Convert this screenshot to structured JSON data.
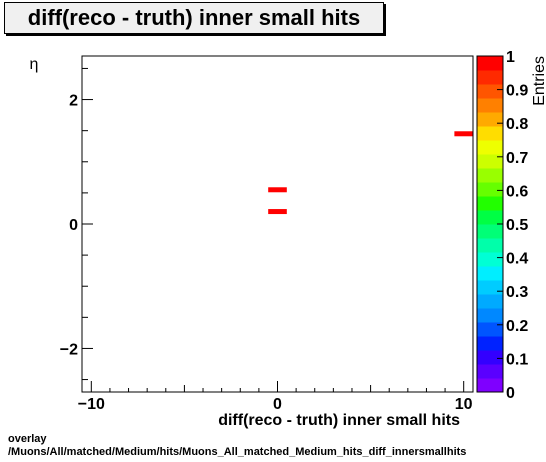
{
  "title": "diff(reco - truth) inner small hits",
  "footer": {
    "line1": "overlay",
    "line2": "/Muons/All/matched/Medium/hits/Muons_All_matched_Medium_hits_diff_innersmallhits"
  },
  "chart_data": {
    "type": "heatmap",
    "title": "diff(reco - truth) inner small hits",
    "xlabel": "diff(reco - truth) inner small hits",
    "ylabel": "η",
    "zlabel": "Entries",
    "xlim": [
      -10.5,
      10.5
    ],
    "ylim": [
      -2.7,
      2.7
    ],
    "zlim": [
      0,
      1
    ],
    "x_ticks": [
      -10,
      0,
      10
    ],
    "x_tick_labels": [
      "−10",
      "0",
      "10"
    ],
    "y_ticks": [
      -2,
      0,
      2
    ],
    "y_tick_labels": [
      "−2",
      "0",
      "2"
    ],
    "z_ticks": [
      0,
      0.1,
      0.2,
      0.3,
      0.4,
      0.5,
      0.6,
      0.7,
      0.8,
      0.9,
      1
    ],
    "z_tick_labels": [
      "0",
      "0.1",
      "0.2",
      "0.3",
      "0.4",
      "0.5",
      "0.6",
      "0.7",
      "0.8",
      "0.9",
      "1"
    ],
    "bins": [
      {
        "x": [
          -0.5,
          0.5
        ],
        "y": [
          0.5,
          0.6
        ],
        "value": 1
      },
      {
        "x": [
          -0.5,
          0.5
        ],
        "y": [
          0.15,
          0.25
        ],
        "value": 1
      },
      {
        "x": [
          9.5,
          10.5
        ],
        "y": [
          1.4,
          1.5
        ],
        "value": 1
      }
    ],
    "palette": [
      "#7f00ff",
      "#5a00ff",
      "#3300ff",
      "#0022ff",
      "#0055ff",
      "#0088ff",
      "#00aaff",
      "#00ccff",
      "#00eeff",
      "#00ffd5",
      "#00ffaa",
      "#00ff77",
      "#00ff44",
      "#22ff00",
      "#66ff00",
      "#99ff00",
      "#ccff00",
      "#eeff00",
      "#ffdd00",
      "#ffaa00",
      "#ff8000",
      "#ff5500",
      "#ff2a00",
      "#ff0000"
    ],
    "mark_color": "#ff0000"
  }
}
